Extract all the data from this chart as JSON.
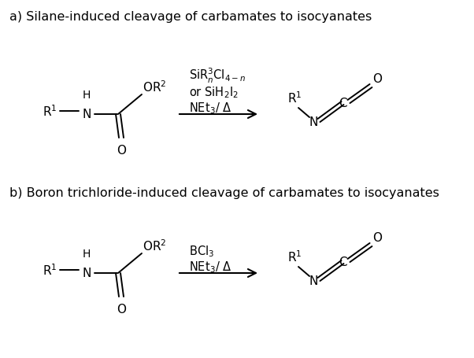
{
  "title_a": "a) Silane-induced cleavage of carbamates to isocyanates",
  "title_b": "b) Boron trichloride-induced cleavage of carbamates to isocyanates",
  "reagent_a_line1": "SiR$^3_n$Cl$_{4-n}$",
  "reagent_a_line2": "or SiH$_2$I$_2$",
  "reagent_a_line3": "NEt$_3$/ Δ",
  "reagent_b_line1": "BCl$_3$",
  "reagent_b_line2": "NEt$_3$/ Δ",
  "bg_color": "#ffffff",
  "text_color": "#000000",
  "fs_title": 11.5,
  "fs_chem": 11,
  "fs_label": 10.5
}
